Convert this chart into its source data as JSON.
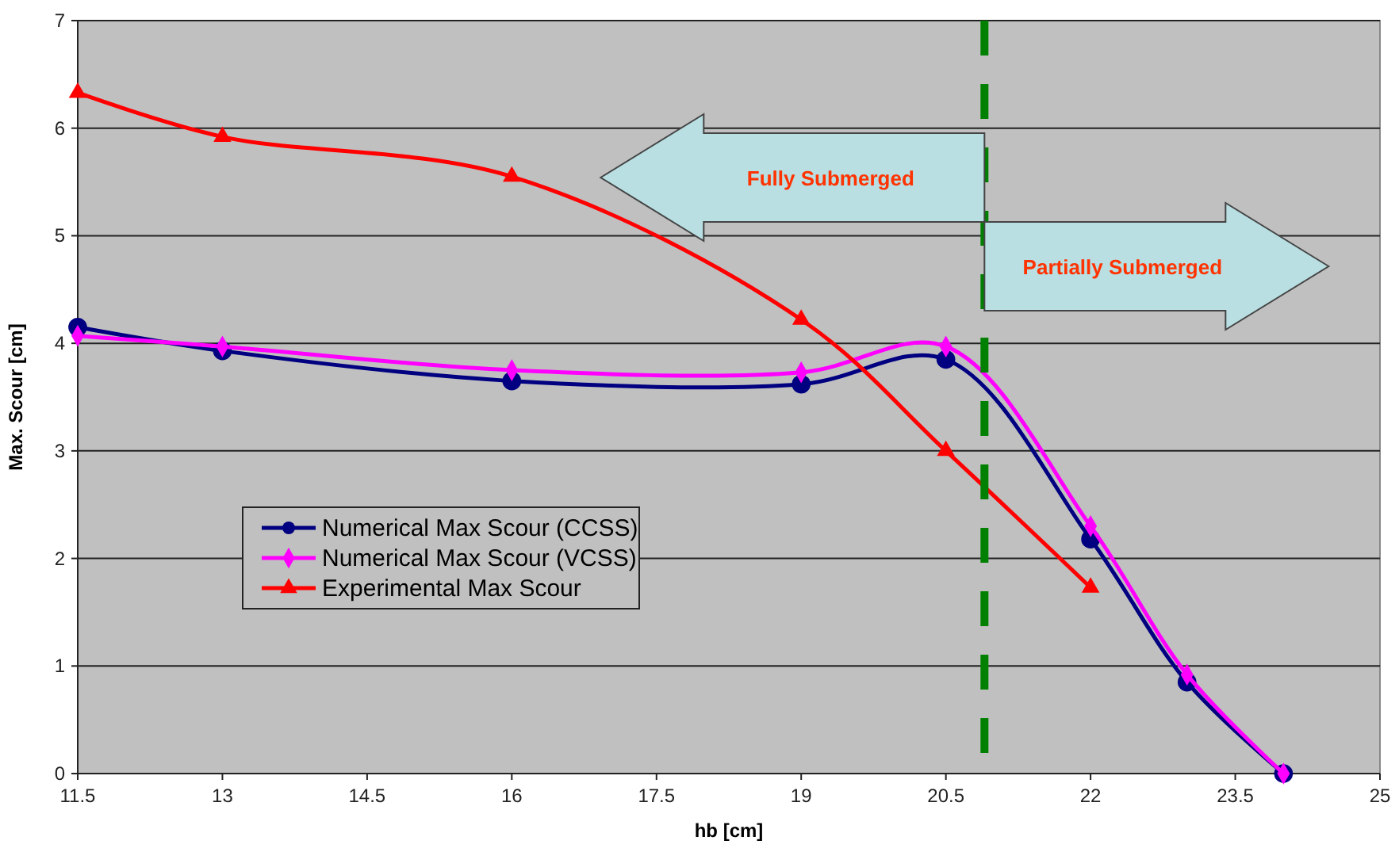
{
  "chart_data": {
    "type": "line",
    "xlabel": "hb [cm]",
    "ylabel": "Max. Scour [cm]",
    "xlim": [
      11.5,
      25
    ],
    "xticks": [
      11.5,
      13,
      14.5,
      16,
      17.5,
      19,
      20.5,
      22,
      23.5,
      25
    ],
    "ylim": [
      0,
      7
    ],
    "yticks": [
      0,
      1,
      2,
      3,
      4,
      5,
      6,
      7
    ],
    "grid": "y",
    "legend": "bottom left",
    "series": [
      {
        "name": "Numerical Max Scour (CCSS)",
        "color": "#000080",
        "marker": "circle",
        "x": [
          11.5,
          13,
          16,
          19,
          20.5,
          22,
          23,
          24
        ],
        "values": [
          4.15,
          3.93,
          3.65,
          3.62,
          3.85,
          2.18,
          0.85,
          0
        ]
      },
      {
        "name": "Numerical Max Scour (VCSS)",
        "color": "#ff00ff",
        "marker": "diamond",
        "x": [
          11.5,
          13,
          16,
          19,
          20.5,
          22,
          23,
          24
        ],
        "values": [
          4.07,
          3.97,
          3.75,
          3.73,
          3.97,
          2.3,
          0.92,
          0
        ]
      },
      {
        "name": "Experimental Max Scour",
        "color": "#ff0000",
        "marker": "triangle",
        "x": [
          11.5,
          13,
          16,
          19,
          20.5,
          22
        ],
        "values": [
          6.33,
          5.92,
          5.55,
          4.22,
          3.0,
          1.73
        ]
      }
    ],
    "ref_lines": [
      {
        "axis": "x",
        "value": 20.9,
        "color": "#008000",
        "line_style": "dashed"
      }
    ],
    "annotations": [
      "Fully Submerged",
      "Partially Submerged"
    ]
  }
}
